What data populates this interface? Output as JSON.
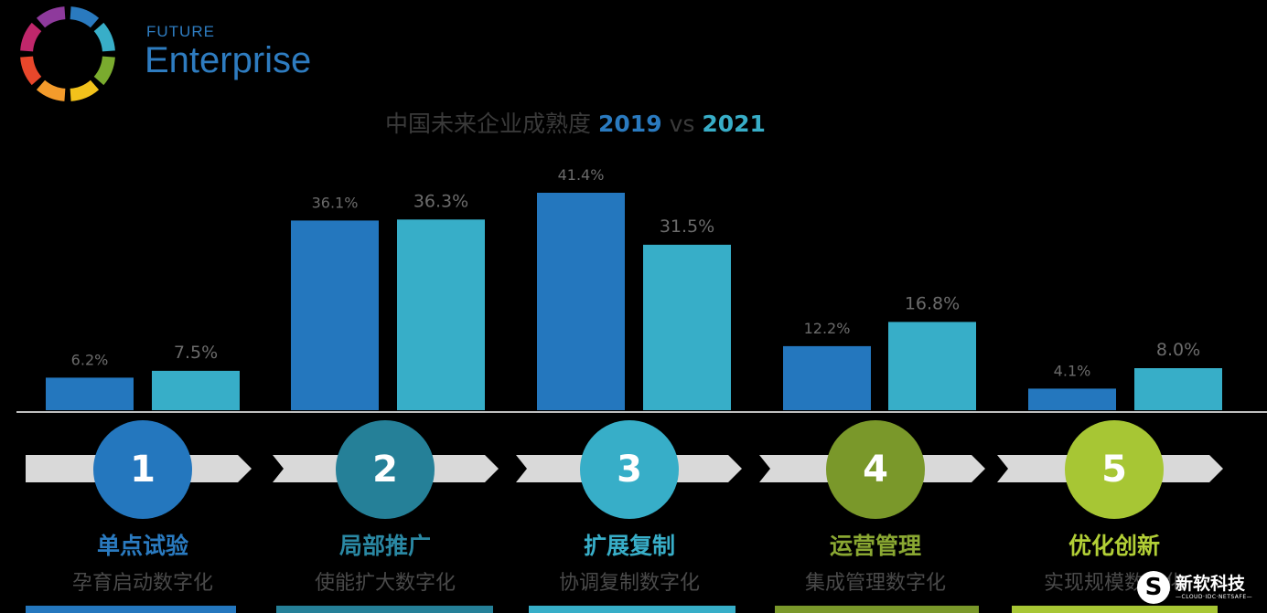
{
  "brand": {
    "top": "FUTURE",
    "main": "Enterprise",
    "ring_colors": [
      "#2a7abf",
      "#38aec8",
      "#7aab2e",
      "#f2c21b",
      "#f39b2b",
      "#e8472b",
      "#c0276b",
      "#8e3a9c"
    ]
  },
  "title": {
    "prefix": "中国未来企业成熟度",
    "year_a": "2019",
    "vs": "vs",
    "year_b": "2021"
  },
  "chart_data": {
    "type": "bar",
    "title": "中国未来企业成熟度 2019 vs 2021",
    "categories": [
      "单点试验",
      "局部推广",
      "扩展复制",
      "运营管理",
      "优化创新"
    ],
    "series": [
      {
        "name": "2019",
        "values": [
          6.2,
          36.1,
          41.4,
          12.2,
          4.1
        ],
        "color": "#2477be"
      },
      {
        "name": "2021",
        "values": [
          7.5,
          36.3,
          31.5,
          16.8,
          8.0
        ],
        "color": "#37aec8"
      }
    ],
    "value_labels_a": [
      "6.2%",
      "36.1%",
      "41.4%",
      "12.2%",
      "4.1%"
    ],
    "value_labels_b": [
      "7.5%",
      "36.3%",
      "31.5%",
      "16.8%",
      "8.0%"
    ],
    "label_color_a": "#6b6b6b",
    "label_color_b": "#6b6b6b",
    "ylim": [
      0,
      45
    ],
    "grid": false,
    "legend": "none"
  },
  "stages": [
    {
      "num": "1",
      "name": "单点试验",
      "desc": "孕育启动数字化",
      "color": "#2477be",
      "name_color": "#2a7abf"
    },
    {
      "num": "2",
      "name": "局部推广",
      "desc": "使能扩大数字化",
      "color": "#258098",
      "name_color": "#2a88a3"
    },
    {
      "num": "3",
      "name": "扩展复制",
      "desc": "协调复制数字化",
      "color": "#37aec8",
      "name_color": "#38aec8"
    },
    {
      "num": "4",
      "name": "运营管理",
      "desc": "集成管理数字化",
      "color": "#7a982a",
      "name_color": "#8aa832"
    },
    {
      "num": "5",
      "name": "优化创新",
      "desc": "实现规模数字化",
      "color": "#a7c634",
      "name_color": "#b2cf36"
    }
  ],
  "watermark": {
    "name": "新软科技",
    "sub": "—CLOUD·IDC·NETSAFE—"
  }
}
